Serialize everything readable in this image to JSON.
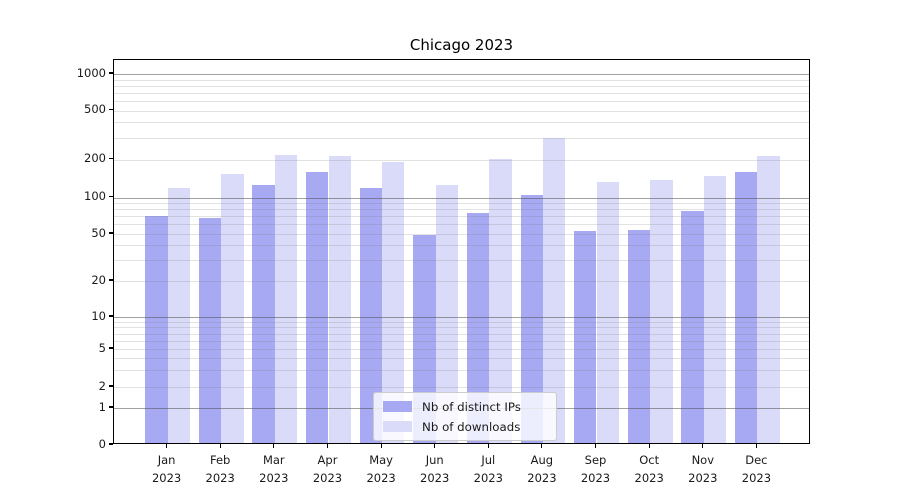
{
  "chart_data": {
    "type": "bar",
    "title": "Chicago 2023",
    "months": [
      "Jan",
      "Feb",
      "Mar",
      "Apr",
      "May",
      "Jun",
      "Jul",
      "Aug",
      "Sep",
      "Oct",
      "Nov",
      "Dec"
    ],
    "year": "2023",
    "categories": [
      "Jan 2023",
      "Feb 2023",
      "Mar 2023",
      "Apr 2023",
      "May 2023",
      "Jun 2023",
      "Jul 2023",
      "Aug 2023",
      "Sep 2023",
      "Oct 2023",
      "Nov 2023",
      "Dec 2023"
    ],
    "series": [
      {
        "name": "Nb of distinct IPs",
        "color": "#a7aaf2",
        "values": [
          68,
          65,
          121,
          155,
          115,
          47,
          72,
          101,
          51,
          52,
          75,
          154
        ]
      },
      {
        "name": "Nb of downloads",
        "color": "#d9dbf9",
        "values": [
          114,
          147,
          210,
          204,
          184,
          122,
          196,
          289,
          127,
          132,
          143,
          207
        ]
      }
    ],
    "y_ticks": [
      0,
      1,
      2,
      5,
      10,
      20,
      50,
      100,
      200,
      500,
      1000
    ],
    "y_major_gridlines": [
      1,
      10,
      100,
      1000
    ],
    "yscale": "log-like with linear segment to 0",
    "ylim": [
      0,
      1300
    ],
    "grid": true,
    "legend_position": "lower center",
    "colors": {
      "bar_dark": "#a7aaf2",
      "bar_light": "#d9dbf9",
      "major_grid": "#b2b2b2",
      "minor_grid": "#dedede",
      "axis": "#000000",
      "text": "#1a1a1a",
      "legend_border": "#cccccc"
    },
    "y_scale_anchors": [
      [
        0,
        1.0
      ],
      [
        1,
        0.9039
      ],
      [
        2,
        0.8494
      ],
      [
        5,
        0.7506
      ],
      [
        10,
        0.6675
      ],
      [
        20,
        0.574
      ],
      [
        50,
        0.4519
      ],
      [
        100,
        0.3571
      ],
      [
        200,
        0.2584
      ],
      [
        500,
        0.1312
      ],
      [
        1000,
        0.0364
      ]
    ]
  }
}
